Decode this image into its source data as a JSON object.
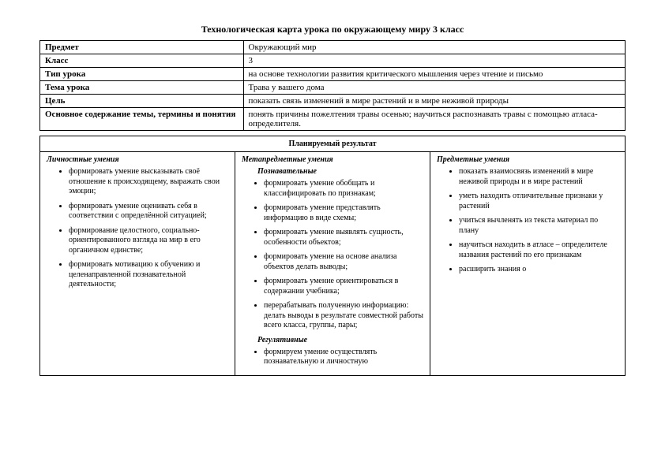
{
  "title": "Технологическая карта урока по окружающему миру 3 класс",
  "info": {
    "rows": [
      {
        "label": "Предмет",
        "value": "Окружающий мир"
      },
      {
        "label": "Класс",
        "value": "3"
      },
      {
        "label": "Тип урока",
        "value": " на основе технологии развития критического мышления через чтение и письмо"
      },
      {
        "label": "Тема урока",
        "value": "Трава у вашего дома"
      },
      {
        "label": "Цель",
        "value": "показать связь изменений в мире  растений и в мире неживой природы"
      },
      {
        "label": "Основное содержание темы, термины и понятия",
        "value": "понять причины пожелтения травы осенью; научиться распознавать травы с помощью атласа-определителя."
      }
    ]
  },
  "result": {
    "heading": "Планируемый результат",
    "personal": {
      "head": "Личностные умения",
      "items": [
        "формировать умение высказывать своё отношение к происходящему, выражать свои эмоции;",
        "формировать  умение оценивать себя в соответствии с определённой ситуацией;",
        "формирование  целостного, социально-ориентированного взгляда на мир в его органичном единстве;",
        "формировать мотивацию к обучению и целенаправленной познавательной деятельности;"
      ]
    },
    "meta": {
      "head": "Метапредметные умения",
      "cognitive_head": "Познавательные",
      "cognitive_items": [
        "формировать умение обобщать и классифицировать по признакам;",
        "формировать  умение представлять информацию в виде схемы;",
        "формировать умение выявлять сущность, особенности объектов;",
        "формировать умение на основе анализа объектов делать выводы;",
        "формировать умение ориентироваться в содержании  учебника;",
        "перерабатывать полученную информацию: делать выводы в результате совместной работы всего класса, группы, пары;"
      ],
      "regulative_head": "Регулятивные",
      "regulative_items": [
        "формируем умение осуществлять познавательную и личностную"
      ]
    },
    "subject": {
      "head": "Предметные умения",
      "items": [
        "показать взаимосвязь изменений  в мире неживой природы и  в мире  растений",
        "уметь находить отличительные признаки у растений",
        "учиться вычленять из текста материал по плану",
        "научиться находить в атласе – определителе названия растений по его признакам",
        "расширить знания о"
      ]
    }
  }
}
